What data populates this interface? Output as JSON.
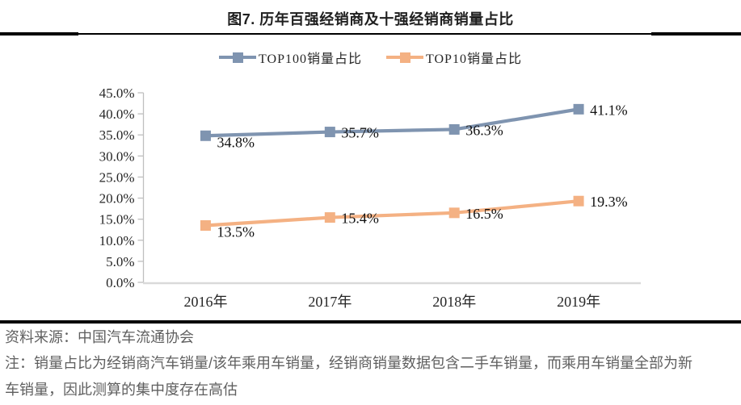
{
  "title": "图7. 历年百强经销商及十强经销商销量占比",
  "source": "资料来源：中国汽车流通协会",
  "note": "注：销量占比为经销商汽车销量/该年乘用车销量，经销商销量数据包含二手车销量，而乘用车销量全部为新车销量，因此测算的集中度存在高估",
  "chart_data": {
    "type": "line",
    "title": "图7. 历年百强经销商及十强经销商销量占比",
    "categories": [
      "2016年",
      "2017年",
      "2018年",
      "2019年"
    ],
    "series": [
      {
        "name": "TOP100销量占比",
        "color": "#7F94B0",
        "marker": "square",
        "values": [
          34.8,
          35.7,
          36.3,
          41.1
        ],
        "labels": [
          "34.8%",
          "35.7%",
          "36.3%",
          "41.1%"
        ]
      },
      {
        "name": "TOP10销量占比",
        "color": "#F4B183",
        "marker": "square",
        "values": [
          13.5,
          15.4,
          16.5,
          19.3
        ],
        "labels": [
          "13.5%",
          "15.4%",
          "16.5%",
          "19.3%"
        ]
      }
    ],
    "ylim": [
      0,
      45
    ],
    "ytick_step": 5,
    "yticks": [
      "45.0%",
      "40.0%",
      "35.0%",
      "30.0%",
      "25.0%",
      "20.0%",
      "15.0%",
      "10.0%",
      "5.0%",
      "0.0%"
    ],
    "xlabel": "",
    "ylabel": "",
    "grid": false,
    "legend_position": "top",
    "axis_color": "#BFBFBF"
  }
}
